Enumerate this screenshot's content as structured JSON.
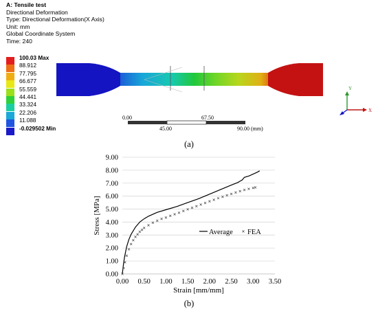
{
  "fea": {
    "title": "A: Tensile test",
    "lines": [
      "Directional Deformation",
      "Type: Directional Deformation(X Axis)",
      "Unit: mm",
      "Global Coordinate System",
      "Time: 240"
    ],
    "legend": [
      {
        "label": "100.03 Max",
        "color": "#e31d1d",
        "bold": true
      },
      {
        "label": "88.912",
        "color": "#ee6e14",
        "bold": false
      },
      {
        "label": "77.795",
        "color": "#f0ad12",
        "bold": false
      },
      {
        "label": "66.677",
        "color": "#e8e815",
        "bold": false
      },
      {
        "label": "55.559",
        "color": "#9be01a",
        "bold": false
      },
      {
        "label": "44.441",
        "color": "#2fd03a",
        "bold": false
      },
      {
        "label": "33.324",
        "color": "#19cfa1",
        "bold": false
      },
      {
        "label": "22.206",
        "color": "#19a8d8",
        "bold": false
      },
      {
        "label": "11.088",
        "color": "#1f55e0",
        "bold": false
      },
      {
        "label": "-0.029502 Min",
        "color": "#1a1ac8",
        "bold": true
      }
    ],
    "scale": {
      "top_labels": [
        "0.00",
        "67.50"
      ],
      "bottom_labels": [
        "45.00",
        "90.00 (mm)"
      ]
    },
    "axes": {
      "y": "Y",
      "x": "X"
    },
    "colors": {
      "blue": "#1515c4",
      "red": "#c41414"
    }
  },
  "captions": {
    "a": "(a)",
    "b": "(b)"
  },
  "chart_data": {
    "type": "line",
    "xlabel": "Strain [mm/mm]",
    "ylabel": "Stress [MPa]",
    "xlim": [
      0,
      3.5
    ],
    "ylim": [
      0,
      9
    ],
    "xticks": [
      "0.00",
      "0.50",
      "1.00",
      "1.50",
      "2.00",
      "2.50",
      "3.00",
      "3.50"
    ],
    "yticks": [
      "0.00",
      "1.00",
      "2.00",
      "3.00",
      "4.00",
      "5.00",
      "6.00",
      "7.00",
      "8.00",
      "9.00"
    ],
    "grid": "horizontal",
    "legend_position": "center-right",
    "series": [
      {
        "name": "Average",
        "style": "line",
        "x": [
          0,
          0.02,
          0.05,
          0.1,
          0.15,
          0.2,
          0.3,
          0.4,
          0.5,
          0.6,
          0.8,
          1.0,
          1.25,
          1.5,
          1.75,
          2.0,
          2.25,
          2.5,
          2.65,
          2.7,
          2.75,
          2.8,
          2.9,
          3.0,
          3.1,
          3.15
        ],
        "y": [
          0,
          0.6,
          1.3,
          2.1,
          2.65,
          3.05,
          3.6,
          4.0,
          4.25,
          4.45,
          4.75,
          4.95,
          5.2,
          5.5,
          5.8,
          6.15,
          6.5,
          6.85,
          7.05,
          7.15,
          7.25,
          7.45,
          7.55,
          7.7,
          7.85,
          7.95
        ]
      },
      {
        "name": "FEA",
        "style": "marker",
        "x": [
          0,
          0.03,
          0.06,
          0.1,
          0.15,
          0.2,
          0.25,
          0.3,
          0.35,
          0.4,
          0.45,
          0.5,
          0.6,
          0.7,
          0.8,
          0.9,
          1.0,
          1.1,
          1.2,
          1.3,
          1.4,
          1.5,
          1.6,
          1.7,
          1.8,
          1.9,
          2.0,
          2.1,
          2.2,
          2.3,
          2.4,
          2.5,
          2.6,
          2.7,
          2.8,
          2.9,
          3.0,
          3.05
        ],
        "y": [
          0,
          0.45,
          0.9,
          1.4,
          1.9,
          2.3,
          2.6,
          2.85,
          3.05,
          3.25,
          3.4,
          3.55,
          3.75,
          3.95,
          4.1,
          4.25,
          4.35,
          4.48,
          4.6,
          4.72,
          4.85,
          4.98,
          5.1,
          5.22,
          5.35,
          5.47,
          5.6,
          5.72,
          5.84,
          5.95,
          6.06,
          6.17,
          6.28,
          6.38,
          6.48,
          6.56,
          6.63,
          6.67
        ]
      }
    ]
  }
}
